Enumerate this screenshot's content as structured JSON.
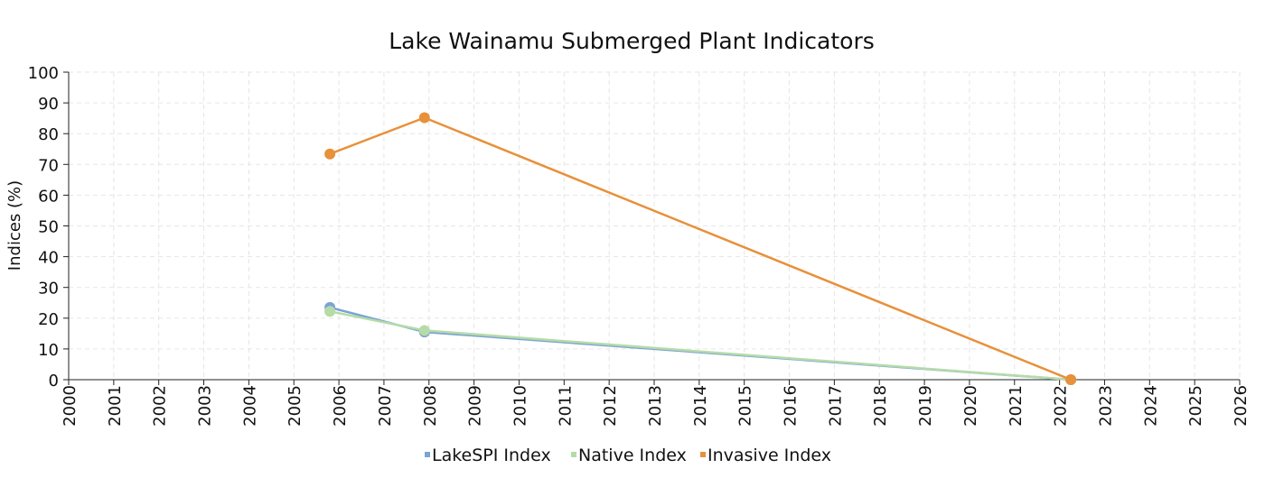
{
  "chart_data": {
    "type": "line",
    "title": "Lake Wainamu Submerged Plant Indicators",
    "xlabel": "",
    "ylabel": "Indices (%)",
    "xlim": [
      2000,
      2026
    ],
    "ylim": [
      0,
      100
    ],
    "xticks": [
      "2000",
      "2001",
      "2002",
      "2003",
      "2004",
      "2005",
      "2006",
      "2007",
      "2008",
      "2009",
      "2010",
      "2011",
      "2012",
      "2013",
      "2014",
      "2015",
      "2016",
      "2017",
      "2018",
      "2019",
      "2020",
      "2021",
      "2022",
      "2023",
      "2024",
      "2025",
      "2026"
    ],
    "yticks": [
      "0",
      "10",
      "20",
      "30",
      "40",
      "50",
      "60",
      "70",
      "80",
      "90",
      "100"
    ],
    "grid": true,
    "legend_position": "bottom",
    "series": [
      {
        "name": "LakeSPI Index",
        "color": "#7aa3d6",
        "x": [
          2005.8,
          2007.9,
          2022.25
        ],
        "y": [
          23.5,
          15.5,
          0
        ]
      },
      {
        "name": "Native Index",
        "color": "#b5dba8",
        "x": [
          2005.8,
          2007.9,
          2022.25
        ],
        "y": [
          22.2,
          16.0,
          0
        ]
      },
      {
        "name": "Invasive Index",
        "color": "#e8903a",
        "x": [
          2005.8,
          2007.9,
          2022.25
        ],
        "y": [
          73.4,
          85.2,
          0
        ]
      }
    ]
  }
}
